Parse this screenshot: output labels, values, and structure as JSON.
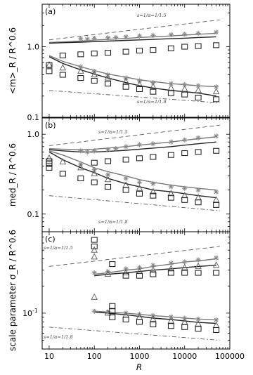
{
  "figure": {
    "x_axis_label": "R",
    "x_tick_labels": [
      "10",
      "100",
      "1000",
      "10000",
      "100000"
    ]
  },
  "chart_data": [
    {
      "panel": "(a)",
      "type": "scatter",
      "ylabel": "<m>_R / R^0.6",
      "x_scale": "log",
      "y_scale": "log",
      "xlim": [
        7,
        100000
      ],
      "ylim": [
        0.1,
        4.0
      ],
      "y_tick_labels": [
        "0.1",
        "1.0"
      ],
      "guide_upper": {
        "label": "s=1/α=1/1.5",
        "x": [
          10,
          60000
        ],
        "y": [
          1.25,
          2.4
        ]
      },
      "guide_lower": {
        "label": "s=1/α=1/1.8",
        "x": [
          10,
          60000
        ],
        "y": [
          0.24,
          0.16
        ]
      },
      "lines": [
        {
          "x": [
            10,
            20,
            50,
            100,
            200,
            500,
            1000,
            2000,
            5000,
            10000,
            20000,
            50000
          ],
          "y": [
            1.15,
            1.17,
            1.2,
            1.24,
            1.27,
            1.31,
            1.35,
            1.38,
            1.42,
            1.46,
            1.5,
            1.55
          ]
        },
        {
          "x": [
            10,
            20,
            50,
            100,
            200,
            500,
            1000,
            2000,
            5000,
            10000,
            20000,
            50000
          ],
          "y": [
            1.12,
            1.14,
            1.16,
            1.18,
            1.2,
            1.23,
            1.25,
            1.27,
            1.3,
            1.32,
            1.35,
            1.38
          ]
        },
        {
          "x": [
            10,
            20,
            50,
            100,
            200,
            500,
            1000,
            2000,
            5000,
            10000,
            20000,
            50000
          ],
          "y": [
            0.75,
            0.62,
            0.52,
            0.46,
            0.41,
            0.37,
            0.34,
            0.32,
            0.3,
            0.29,
            0.28,
            0.27
          ]
        },
        {
          "x": [
            10,
            20,
            50,
            100,
            200,
            500,
            1000,
            2000,
            5000,
            10000,
            20000,
            50000
          ],
          "y": [
            0.72,
            0.58,
            0.47,
            0.41,
            0.36,
            0.31,
            0.28,
            0.26,
            0.24,
            0.23,
            0.22,
            0.2
          ]
        }
      ],
      "markers": [
        {
          "symbol": "star",
          "x": [
            50,
            70,
            100,
            200,
            300,
            500,
            1000,
            2000,
            5000,
            10000,
            20000,
            50000
          ],
          "y": [
            1.3,
            1.28,
            1.32,
            1.34,
            1.35,
            1.38,
            1.42,
            1.45,
            1.48,
            1.5,
            1.55,
            1.6
          ]
        },
        {
          "symbol": "star",
          "x": [
            50,
            100,
            200,
            500,
            1000,
            2000,
            5000,
            10000,
            20000,
            50000
          ],
          "y": [
            0.52,
            0.45,
            0.4,
            0.36,
            0.33,
            0.31,
            0.3,
            0.29,
            0.28,
            0.27
          ]
        },
        {
          "symbol": "triangle",
          "x": [
            10,
            20,
            50,
            100,
            200,
            500,
            1000,
            2000,
            5000,
            10000,
            20000,
            50000
          ],
          "y": [
            0.55,
            0.5,
            0.45,
            0.4,
            0.36,
            0.32,
            0.29,
            0.27,
            0.26,
            0.25,
            0.24,
            0.23
          ]
        },
        {
          "symbol": "square",
          "x": [
            10,
            10,
            20,
            50,
            100,
            200,
            500,
            1000,
            2000,
            5000,
            10000,
            20000,
            50000
          ],
          "y": [
            0.55,
            0.45,
            0.4,
            0.36,
            0.33,
            0.3,
            0.27,
            0.25,
            0.23,
            0.22,
            0.21,
            0.19,
            0.18
          ]
        },
        {
          "symbol": "square",
          "x": [
            20,
            50,
            100,
            200,
            500,
            1000,
            2000,
            5000,
            10000,
            20000,
            50000
          ],
          "y": [
            0.75,
            0.78,
            0.8,
            0.82,
            0.85,
            0.88,
            0.9,
            0.95,
            1.0,
            1.02,
            1.05
          ]
        }
      ]
    },
    {
      "panel": "(b)",
      "type": "scatter",
      "ylabel": "med_R / R^0.6",
      "x_scale": "log",
      "y_scale": "log",
      "xlim": [
        7,
        100000
      ],
      "ylim": [
        0.06,
        1.6
      ],
      "y_tick_labels": [
        "0.1",
        "1.0"
      ],
      "guide_upper": {
        "label": "s=1/α=1/1.5",
        "x": [
          10,
          60000
        ],
        "y": [
          0.72,
          1.3
        ]
      },
      "guide_lower": {
        "label": "s=1/α=1/1.8",
        "x": [
          10,
          60000
        ],
        "y": [
          0.17,
          0.11
        ]
      },
      "lines": [
        {
          "x": [
            10,
            20,
            50,
            100,
            200,
            500,
            1000,
            2000,
            5000,
            10000,
            20000,
            50000
          ],
          "y": [
            0.66,
            0.65,
            0.64,
            0.65,
            0.67,
            0.7,
            0.73,
            0.76,
            0.8,
            0.84,
            0.88,
            0.93
          ]
        },
        {
          "x": [
            10,
            20,
            50,
            100,
            200,
            500,
            1000,
            2000,
            5000,
            10000,
            20000,
            50000
          ],
          "y": [
            0.64,
            0.62,
            0.6,
            0.6,
            0.61,
            0.63,
            0.65,
            0.67,
            0.7,
            0.73,
            0.76,
            0.8
          ]
        },
        {
          "x": [
            10,
            20,
            50,
            100,
            200,
            500,
            1000,
            2000,
            5000,
            10000,
            20000,
            50000
          ],
          "y": [
            0.62,
            0.55,
            0.45,
            0.38,
            0.34,
            0.3,
            0.27,
            0.25,
            0.23,
            0.22,
            0.21,
            0.2
          ]
        },
        {
          "x": [
            10,
            20,
            50,
            100,
            200,
            500,
            1000,
            2000,
            5000,
            10000,
            20000,
            50000
          ],
          "y": [
            0.6,
            0.48,
            0.38,
            0.33,
            0.28,
            0.24,
            0.22,
            0.2,
            0.19,
            0.18,
            0.17,
            0.16
          ]
        }
      ],
      "markers": [
        {
          "symbol": "star",
          "x": [
            50,
            70,
            100,
            200,
            300,
            500,
            1000,
            2000,
            5000,
            10000,
            20000,
            50000
          ],
          "y": [
            0.62,
            0.6,
            0.62,
            0.64,
            0.66,
            0.7,
            0.74,
            0.76,
            0.8,
            0.85,
            0.9,
            0.95
          ]
        },
        {
          "symbol": "star",
          "x": [
            50,
            100,
            200,
            500,
            1000,
            2000,
            5000,
            10000,
            20000,
            50000
          ],
          "y": [
            0.42,
            0.36,
            0.31,
            0.28,
            0.25,
            0.24,
            0.22,
            0.21,
            0.2,
            0.19
          ]
        },
        {
          "symbol": "triangle",
          "x": [
            10,
            20,
            50,
            100,
            200,
            500,
            1000,
            2000,
            5000,
            10000,
            20000,
            50000
          ],
          "y": [
            0.5,
            0.45,
            0.38,
            0.32,
            0.27,
            0.23,
            0.21,
            0.19,
            0.18,
            0.17,
            0.16,
            0.15
          ]
        },
        {
          "symbol": "square",
          "x": [
            10,
            10,
            10,
            20,
            50,
            100,
            200,
            500,
            1000,
            2000,
            5000,
            10000,
            20000,
            50000
          ],
          "y": [
            0.46,
            0.42,
            0.38,
            0.32,
            0.28,
            0.25,
            0.22,
            0.2,
            0.18,
            0.17,
            0.16,
            0.15,
            0.14,
            0.13
          ]
        },
        {
          "symbol": "square",
          "x": [
            100,
            200,
            500,
            1000,
            2000,
            5000,
            10000,
            20000,
            50000
          ],
          "y": [
            0.44,
            0.46,
            0.48,
            0.5,
            0.52,
            0.55,
            0.58,
            0.6,
            0.62
          ]
        }
      ]
    },
    {
      "panel": "(c)",
      "type": "scatter",
      "ylabel": "scale parameter σ_R / R^0.6",
      "x_scale": "log",
      "y_scale": "log",
      "xlim": [
        7,
        100000
      ],
      "ylim": [
        0.04,
        0.8
      ],
      "y_tick_labels": [
        "10^-1"
      ],
      "guide_upper": {
        "label": "s=1/α=1/1.5",
        "x": [
          10,
          60000
        ],
        "y": [
          0.33,
          0.55
        ]
      },
      "guide_lower": {
        "label": "s=1/α=1/1.8",
        "x": [
          10,
          60000
        ],
        "y": [
          0.07,
          0.05
        ]
      },
      "lines": [
        {
          "x": [
            100,
            200,
            500,
            1000,
            2000,
            5000,
            10000,
            20000,
            50000
          ],
          "y": [
            0.27,
            0.28,
            0.3,
            0.31,
            0.33,
            0.35,
            0.37,
            0.38,
            0.4
          ]
        },
        {
          "x": [
            100,
            200,
            500,
            1000,
            2000,
            5000,
            10000,
            20000,
            50000
          ],
          "y": [
            0.26,
            0.27,
            0.28,
            0.29,
            0.3,
            0.31,
            0.32,
            0.33,
            0.34
          ]
        },
        {
          "x": [
            100,
            200,
            500,
            1000,
            2000,
            5000,
            10000,
            20000,
            50000
          ],
          "y": [
            0.105,
            0.103,
            0.1,
            0.097,
            0.094,
            0.091,
            0.088,
            0.086,
            0.084
          ]
        },
        {
          "x": [
            100,
            200,
            500,
            1000,
            2000,
            5000,
            10000,
            20000,
            50000
          ],
          "y": [
            0.103,
            0.1,
            0.096,
            0.092,
            0.088,
            0.085,
            0.082,
            0.079,
            0.077
          ]
        }
      ],
      "markers": [
        {
          "symbol": "star",
          "x": [
            100,
            200,
            500,
            1000,
            2000,
            5000,
            10000,
            20000,
            50000
          ],
          "y": [
            0.28,
            0.29,
            0.31,
            0.32,
            0.34,
            0.36,
            0.37,
            0.39,
            0.41
          ]
        },
        {
          "symbol": "star",
          "x": [
            100,
            200,
            500,
            1000,
            2000,
            5000,
            10000,
            20000,
            50000
          ],
          "y": [
            0.105,
            0.103,
            0.1,
            0.097,
            0.094,
            0.091,
            0.088,
            0.086,
            0.084
          ]
        },
        {
          "symbol": "triangle",
          "x": [
            100,
            100,
            100,
            200,
            500,
            1000,
            2000,
            5000,
            10000,
            20000,
            50000
          ],
          "y": [
            0.5,
            0.42,
            0.15,
            0.27,
            0.28,
            0.29,
            0.3,
            0.31,
            0.32,
            0.33,
            0.34
          ]
        },
        {
          "symbol": "triangle",
          "x": [
            200,
            500,
            1000,
            2000,
            5000,
            10000,
            20000,
            50000
          ],
          "y": [
            0.1,
            0.095,
            0.09,
            0.086,
            0.082,
            0.079,
            0.076,
            0.073
          ]
        },
        {
          "symbol": "square",
          "x": [
            100,
            100,
            250,
            250,
            250,
            500,
            1000,
            2000,
            5000,
            10000,
            20000,
            50000
          ],
          "y": [
            0.65,
            0.55,
            0.35,
            0.12,
            0.105,
            0.26,
            0.26,
            0.27,
            0.28,
            0.28,
            0.28,
            0.28
          ]
        },
        {
          "symbol": "square",
          "x": [
            250,
            500,
            1000,
            2000,
            5000,
            10000,
            20000,
            50000
          ],
          "y": [
            0.09,
            0.085,
            0.08,
            0.075,
            0.072,
            0.07,
            0.067,
            0.065
          ]
        }
      ]
    }
  ]
}
